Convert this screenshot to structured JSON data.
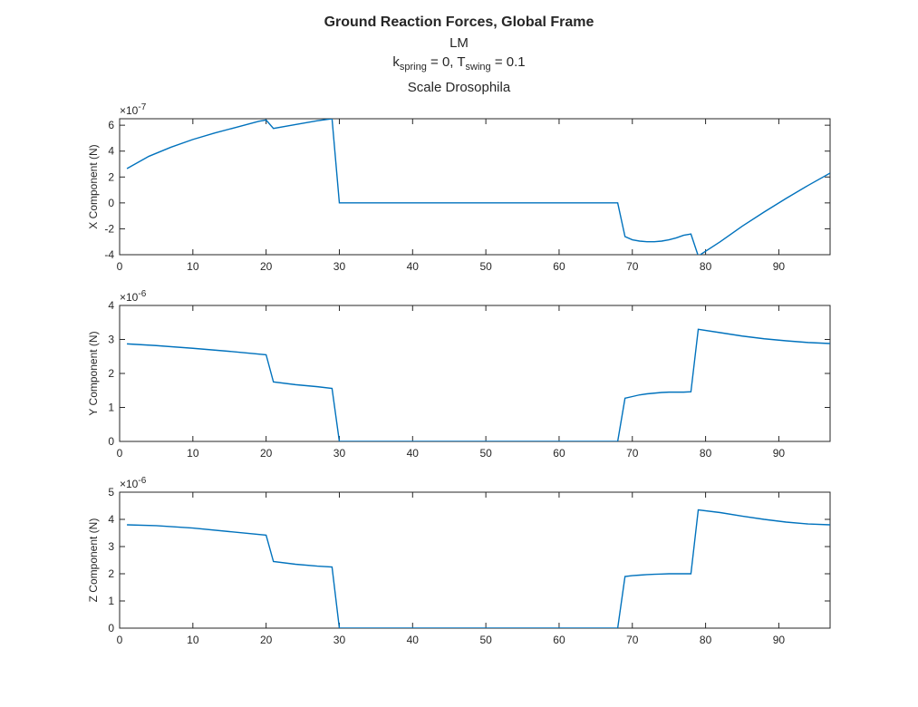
{
  "figure": {
    "title": "Ground Reaction Forces, Global Frame",
    "subtitle1": "LM",
    "subtitle2_parts": {
      "k": "k",
      "k_sub": "spring",
      "k_rest": " = 0, T",
      "t_sub": "swing",
      "t_rest": " = 0.1"
    },
    "subtitle3": "Scale Drosophila"
  },
  "colors": {
    "line": "#0072BD",
    "axis": "#262626",
    "background": "#ffffff"
  },
  "chart_data": [
    {
      "type": "line",
      "ylabel": "X Component (N)",
      "exponent_label": "×10",
      "exponent_power": "-7",
      "xlim": [
        0,
        97
      ],
      "ylim": [
        -4,
        6.5
      ],
      "xticks": [
        0,
        10,
        20,
        30,
        40,
        50,
        60,
        70,
        80,
        90
      ],
      "yticks": [
        -4,
        -2,
        0,
        2,
        4,
        6
      ],
      "grid": false,
      "series": [
        {
          "x": [
            1,
            4,
            7,
            10,
            13,
            16,
            19,
            20,
            21,
            24,
            27,
            29,
            30,
            35,
            40,
            45,
            50,
            55,
            60,
            65,
            68,
            69,
            70,
            71,
            72,
            73,
            74,
            75,
            76,
            77,
            78,
            79,
            82,
            85,
            88,
            91,
            94,
            97
          ],
          "y": [
            2.65,
            3.6,
            4.3,
            4.9,
            5.4,
            5.85,
            6.3,
            6.4,
            5.75,
            6.05,
            6.35,
            6.5,
            0,
            0,
            0,
            0,
            0,
            0,
            0,
            0,
            0,
            -2.6,
            -2.85,
            -2.95,
            -3.0,
            -3.0,
            -2.95,
            -2.85,
            -2.7,
            -2.5,
            -2.4,
            -4.1,
            -3.0,
            -1.8,
            -0.7,
            0.35,
            1.35,
            2.3
          ]
        }
      ]
    },
    {
      "type": "line",
      "ylabel": "Y Component (N)",
      "exponent_label": "×10",
      "exponent_power": "-6",
      "xlim": [
        0,
        97
      ],
      "ylim": [
        0,
        4
      ],
      "xticks": [
        0,
        10,
        20,
        30,
        40,
        50,
        60,
        70,
        80,
        90
      ],
      "yticks": [
        0,
        1,
        2,
        3,
        4
      ],
      "grid": false,
      "series": [
        {
          "x": [
            1,
            5,
            10,
            15,
            20,
            21,
            24,
            27,
            29,
            30,
            35,
            40,
            45,
            50,
            55,
            60,
            65,
            68,
            69,
            70,
            71,
            72,
            73,
            74,
            75,
            76,
            77,
            78,
            79,
            82,
            85,
            88,
            91,
            94,
            97
          ],
          "y": [
            2.87,
            2.82,
            2.74,
            2.65,
            2.55,
            1.75,
            1.67,
            1.61,
            1.56,
            0,
            0,
            0,
            0,
            0,
            0,
            0,
            0,
            0,
            1.27,
            1.32,
            1.37,
            1.4,
            1.42,
            1.44,
            1.45,
            1.45,
            1.45,
            1.46,
            3.3,
            3.2,
            3.1,
            3.02,
            2.96,
            2.91,
            2.88
          ]
        }
      ]
    },
    {
      "type": "line",
      "ylabel": "Z Component (N)",
      "exponent_label": "×10",
      "exponent_power": "-6",
      "xlim": [
        0,
        97
      ],
      "ylim": [
        0,
        5
      ],
      "xticks": [
        0,
        10,
        20,
        30,
        40,
        50,
        60,
        70,
        80,
        90
      ],
      "yticks": [
        0,
        1,
        2,
        3,
        4,
        5
      ],
      "grid": false,
      "series": [
        {
          "x": [
            1,
            5,
            10,
            15,
            20,
            21,
            24,
            27,
            29,
            30,
            35,
            40,
            45,
            50,
            55,
            60,
            65,
            68,
            69,
            70,
            71,
            72,
            73,
            74,
            75,
            76,
            77,
            78,
            79,
            82,
            85,
            88,
            91,
            94,
            97
          ],
          "y": [
            3.8,
            3.77,
            3.68,
            3.55,
            3.42,
            2.45,
            2.35,
            2.28,
            2.25,
            0,
            0,
            0,
            0,
            0,
            0,
            0,
            0,
            0,
            1.9,
            1.93,
            1.95,
            1.97,
            1.98,
            1.99,
            2.0,
            2.0,
            2.0,
            2.0,
            4.35,
            4.25,
            4.12,
            4.0,
            3.9,
            3.83,
            3.8
          ]
        }
      ]
    }
  ]
}
